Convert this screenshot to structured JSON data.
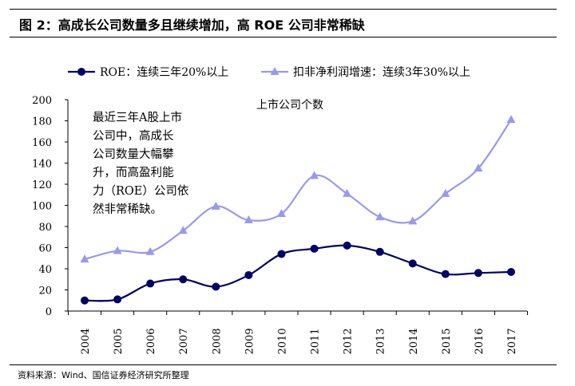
{
  "header": {
    "title": "图 2：高成长公司数量多且继续增加，高 ROE 公司非常稀缺"
  },
  "footer": {
    "source": "资料来源：Wind、国信证券经济研究所整理"
  },
  "chart_data": {
    "type": "line",
    "title": "上市公司个数",
    "annotation": [
      "最近三年A股上市",
      "公司中，高成长",
      "公司数量大幅攀",
      "升，而高盈利能",
      "力（ROE）公司依",
      "然非常稀缺。"
    ],
    "categories": [
      "2004",
      "2005",
      "2006",
      "2007",
      "2008",
      "2009",
      "2010",
      "2011",
      "2012",
      "2013",
      "2014",
      "2015",
      "2016",
      "2017"
    ],
    "series": [
      {
        "name": "ROE：连续三年20%以上",
        "color": "#000066",
        "marker": "circle",
        "values": [
          10,
          11,
          26,
          30,
          23,
          34,
          54,
          59,
          62,
          56,
          45,
          35,
          36,
          37
        ]
      },
      {
        "name": "扣非净利润增速：连续3年30%以上",
        "color": "#9999ee",
        "marker": "triangle",
        "values": [
          49,
          57,
          56,
          76,
          99,
          86,
          92,
          128,
          111,
          89,
          85,
          111,
          135,
          181
        ]
      }
    ],
    "ylim": [
      0,
      200
    ],
    "yticks": [
      0,
      20,
      40,
      60,
      80,
      100,
      120,
      140,
      160,
      180,
      200
    ],
    "grid": false,
    "legend": "top",
    "smooth": true
  }
}
